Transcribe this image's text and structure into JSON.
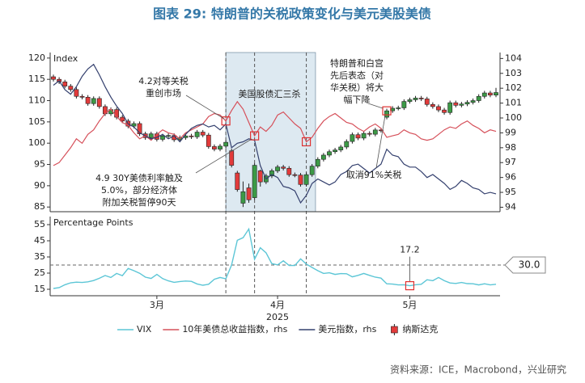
{
  "title": "图表 29: 特朗普的关税政策变化与美元美股美债",
  "source": "资料来源：ICE，Macrobond，兴业研究",
  "chart_data": [
    {
      "type": "candlestick",
      "y_label": "Index",
      "xlim": [
        0,
        77
      ],
      "ylim": [
        83.9,
        121.3
      ],
      "yticks": [
        85,
        90,
        95,
        100,
        105,
        110,
        115,
        120
      ],
      "y2lim": [
        93.7,
        104.4
      ],
      "y2ticks": [
        94,
        95,
        96,
        97,
        98,
        99,
        100,
        101,
        102,
        103,
        104
      ],
      "events": [
        30,
        35,
        44
      ],
      "shade": [
        30,
        45.6
      ],
      "series": [
        {
          "name": "纳斯达克",
          "up_color": "#3c9a46",
          "down_color": "#e23b3b",
          "open": [
            115.6,
            115.0,
            114.4,
            113.4,
            112.6,
            111.0,
            110.8,
            109.3,
            110.5,
            108.6,
            106.9,
            107.9,
            106.1,
            105.2,
            104.0,
            104.6,
            102.2,
            101.3,
            102.2,
            100.9,
            101.7,
            101.8,
            100.8,
            101.3,
            101.7,
            101.5,
            102.6,
            101.9,
            99.2,
            98.6,
            99.3,
            98.2,
            93.0,
            85.9,
            89.5,
            87.2,
            93.5,
            90.9,
            92.3,
            93.5,
            94.4,
            94.1,
            92.6,
            92.5,
            90.3,
            92.6,
            94.6,
            96.2,
            97.2,
            98.0,
            98.4,
            99.1,
            100.4,
            102.0,
            101.2,
            102.3,
            102.1,
            103.1,
            106.1,
            107.6,
            108.2,
            108.3,
            109.8,
            110.2,
            110.6,
            110.4,
            109.1,
            108.6,
            107.8,
            107.2,
            109.5,
            108.9,
            109.2,
            109.6,
            110.0,
            111.0,
            111.8,
            111.3
          ],
          "high": [
            116.1,
            115.5,
            114.9,
            113.9,
            113.1,
            111.5,
            111.3,
            111.0,
            111.0,
            109.1,
            108.4,
            108.4,
            106.6,
            105.7,
            105.1,
            105.1,
            102.7,
            102.7,
            102.7,
            102.2,
            102.3,
            102.3,
            101.8,
            102.2,
            102.2,
            103.1,
            103.1,
            102.4,
            99.7,
            99.8,
            100.7,
            98.7,
            93.5,
            91.0,
            90.5,
            95.3,
            93.8,
            92.8,
            94.0,
            94.9,
            94.9,
            94.6,
            93.1,
            93.0,
            93.1,
            95.1,
            96.7,
            97.7,
            98.5,
            98.9,
            99.6,
            100.9,
            102.5,
            102.5,
            102.8,
            102.8,
            103.6,
            103.6,
            108.1,
            108.7,
            108.8,
            110.3,
            110.7,
            111.1,
            111.1,
            110.9,
            109.6,
            109.1,
            108.3,
            110.0,
            110.0,
            109.7,
            110.1,
            110.5,
            111.5,
            112.3,
            112.3,
            113.0
          ],
          "low": [
            114.5,
            113.9,
            112.9,
            112.1,
            110.5,
            110.3,
            108.8,
            108.8,
            108.1,
            106.4,
            106.4,
            105.6,
            104.7,
            103.5,
            103.5,
            101.7,
            100.8,
            100.8,
            100.4,
            100.4,
            101.2,
            100.3,
            100.3,
            100.8,
            101.0,
            101.0,
            101.4,
            98.7,
            98.1,
            98.1,
            98.8,
            94.3,
            88.6,
            85.0,
            86.0,
            86.7,
            89.8,
            90.4,
            91.8,
            93.0,
            93.6,
            92.1,
            92.0,
            89.8,
            89.8,
            92.1,
            94.1,
            95.7,
            96.7,
            97.5,
            97.9,
            98.6,
            99.9,
            100.7,
            100.7,
            101.6,
            101.6,
            102.5,
            105.6,
            107.1,
            107.7,
            107.8,
            109.3,
            109.7,
            109.9,
            108.6,
            108.1,
            107.3,
            106.7,
            106.7,
            108.4,
            108.4,
            108.7,
            109.1,
            109.5,
            110.5,
            110.8,
            110.8
          ],
          "close": [
            115.0,
            114.4,
            113.4,
            112.6,
            111.0,
            110.8,
            109.3,
            110.5,
            108.6,
            106.9,
            107.9,
            106.1,
            105.2,
            104.0,
            104.6,
            102.2,
            101.3,
            102.2,
            100.9,
            101.7,
            101.8,
            100.8,
            101.3,
            101.7,
            101.5,
            102.6,
            101.9,
            99.2,
            98.6,
            99.3,
            100.2,
            94.8,
            89.1,
            88.6,
            86.7,
            94.8,
            90.9,
            92.3,
            93.5,
            94.4,
            94.1,
            92.6,
            92.5,
            90.3,
            92.6,
            94.6,
            96.2,
            97.2,
            98.0,
            98.4,
            99.1,
            100.4,
            102.0,
            101.2,
            102.3,
            102.1,
            103.1,
            103.0,
            107.6,
            108.2,
            108.3,
            109.8,
            110.2,
            110.6,
            110.4,
            109.1,
            108.6,
            107.8,
            107.2,
            109.5,
            108.9,
            109.2,
            109.6,
            110.0,
            111.0,
            111.8,
            111.3,
            111.9
          ]
        },
        {
          "name": "10年美债总收益指数，rhs",
          "color": "#d6505a",
          "axis": "y2",
          "values": [
            96.8,
            97.0,
            97.5,
            98.0,
            98.6,
            98.3,
            98.9,
            99.2,
            99.8,
            100.3,
            100.6,
            100.1,
            99.7,
            99.5,
            99.0,
            98.6,
            98.8,
            98.5,
            98.9,
            99.2,
            99.0,
            98.9,
            98.6,
            99.0,
            99.2,
            99.4,
            99.6,
            100.1,
            100.3,
            100.2,
            99.8,
            100.5,
            101.1,
            100.6,
            99.7,
            98.8,
            99.4,
            99.1,
            99.5,
            100.2,
            100.4,
            100.0,
            99.6,
            99.3,
            98.4,
            98.7,
            99.3,
            99.8,
            100.1,
            100.3,
            100.0,
            99.7,
            99.6,
            99.3,
            99.1,
            99.4,
            99.6,
            99.3,
            98.7,
            98.8,
            98.9,
            99.2,
            99.0,
            98.9,
            98.6,
            98.5,
            98.6,
            98.9,
            99.2,
            99.4,
            99.3,
            99.6,
            99.8,
            99.5,
            99.3,
            99.0,
            99.2,
            99.1
          ]
        },
        {
          "name": "美元指数，rhs",
          "color": "#34406e",
          "axis": "y2",
          "values": [
            102.2,
            102.5,
            101.9,
            101.6,
            102.1,
            102.8,
            103.3,
            103.6,
            102.9,
            102.1,
            101.4,
            100.8,
            100.3,
            99.6,
            99.4,
            99.0,
            98.8,
            98.6,
            98.7,
            98.9,
            98.6,
            98.8,
            98.4,
            98.9,
            99.3,
            99.5,
            99.6,
            99.4,
            99.5,
            99.2,
            99.6,
            98.0,
            98.3,
            98.4,
            98.6,
            98.5,
            96.8,
            95.9,
            96.2,
            96.0,
            95.4,
            95.3,
            95.1,
            94.3,
            94.8,
            95.6,
            95.9,
            95.7,
            95.5,
            95.7,
            96.2,
            96.4,
            96.8,
            96.9,
            96.6,
            96.3,
            96.6,
            96.9,
            97.9,
            97.5,
            97.4,
            96.9,
            96.7,
            96.7,
            96.4,
            96.0,
            96.2,
            95.9,
            95.6,
            95.2,
            95.4,
            95.8,
            95.6,
            95.3,
            95.2,
            94.9,
            95.0,
            94.9
          ]
        }
      ],
      "highlights": [
        {
          "series": 1,
          "index": 30
        },
        {
          "series": 1,
          "index": 35
        },
        {
          "series": 1,
          "index": 44
        },
        {
          "series": 0,
          "index": 58
        }
      ],
      "annotations": [
        {
          "text": [
            "4.2对等关税",
            "重创市场"
          ]
        },
        {
          "text": [
            "美国股债汇三杀"
          ]
        },
        {
          "text": [
            "特朗普和白宫",
            "先后表态（对",
            "华关税）将大",
            "幅下降"
          ]
        },
        {
          "text": [
            "4.9 30Y美债利率触及",
            "5.0%，部分经济体",
            "附加关税暂停90天"
          ]
        },
        {
          "text": [
            "取消91%关税"
          ]
        }
      ]
    },
    {
      "type": "line",
      "y_label": "Percentage Points",
      "xlim": [
        0,
        77
      ],
      "xticks": [
        {
          "value": 18,
          "label": "3月"
        },
        {
          "value": 39,
          "label": "4月"
        },
        {
          "value": 62,
          "label": "5月"
        }
      ],
      "x_sublabel": "2025",
      "ylim": [
        11,
        60
      ],
      "yticks": [
        15,
        25,
        35,
        45,
        55
      ],
      "hline": {
        "value": 30,
        "label": "30.0"
      },
      "series": [
        {
          "name": "VIX",
          "color": "#5cc6d6",
          "values": [
            15.5,
            16,
            17.8,
            19,
            19.4,
            19.2,
            19.6,
            20.4,
            21.8,
            23.5,
            22.3,
            24.8,
            23.4,
            27.9,
            26.5,
            24.9,
            22.5,
            21.7,
            24.2,
            21.6,
            20.2,
            19.3,
            19.8,
            20.1,
            19.9,
            18.3,
            17.5,
            18.1,
            21.2,
            22.3,
            21.5,
            30.0,
            45.3,
            46.9,
            52.3,
            33.6,
            40.7,
            37.6,
            30.9,
            30.1,
            32.6,
            29.7,
            29.7,
            33.8,
            30.6,
            28.5,
            26.5,
            24.8,
            25.2,
            24.2,
            24.7,
            24.6,
            22.7,
            23.6,
            24.8,
            23.6,
            22.5,
            21.9,
            18.4,
            18.2,
            17.7,
            17.8,
            17.2,
            17.8,
            18.1,
            20.9,
            20.3,
            22.3,
            20.3,
            18.9,
            18.6,
            19.2,
            18.5,
            18.4,
            17.7,
            18.4,
            17.7,
            18.1
          ],
          "value_labels": [
            null,
            null,
            null,
            null,
            null,
            null,
            null,
            null,
            null,
            null,
            null,
            null,
            null,
            null,
            null,
            null,
            null,
            null,
            null,
            null,
            null,
            null,
            null,
            null,
            null,
            null,
            null,
            null,
            null,
            null,
            null,
            null,
            null,
            null,
            null,
            null,
            null,
            null,
            null,
            null,
            null,
            null,
            null,
            null,
            null,
            null,
            null,
            null,
            null,
            null,
            null,
            null,
            null,
            null,
            null,
            null,
            null,
            null,
            null,
            null,
            null,
            null,
            "17.2",
            null,
            null,
            null,
            null,
            null,
            null,
            null,
            null,
            null,
            null,
            null,
            null,
            null,
            null,
            null
          ]
        }
      ],
      "highlights": [
        {
          "series": 0,
          "index": 62
        }
      ]
    }
  ]
}
